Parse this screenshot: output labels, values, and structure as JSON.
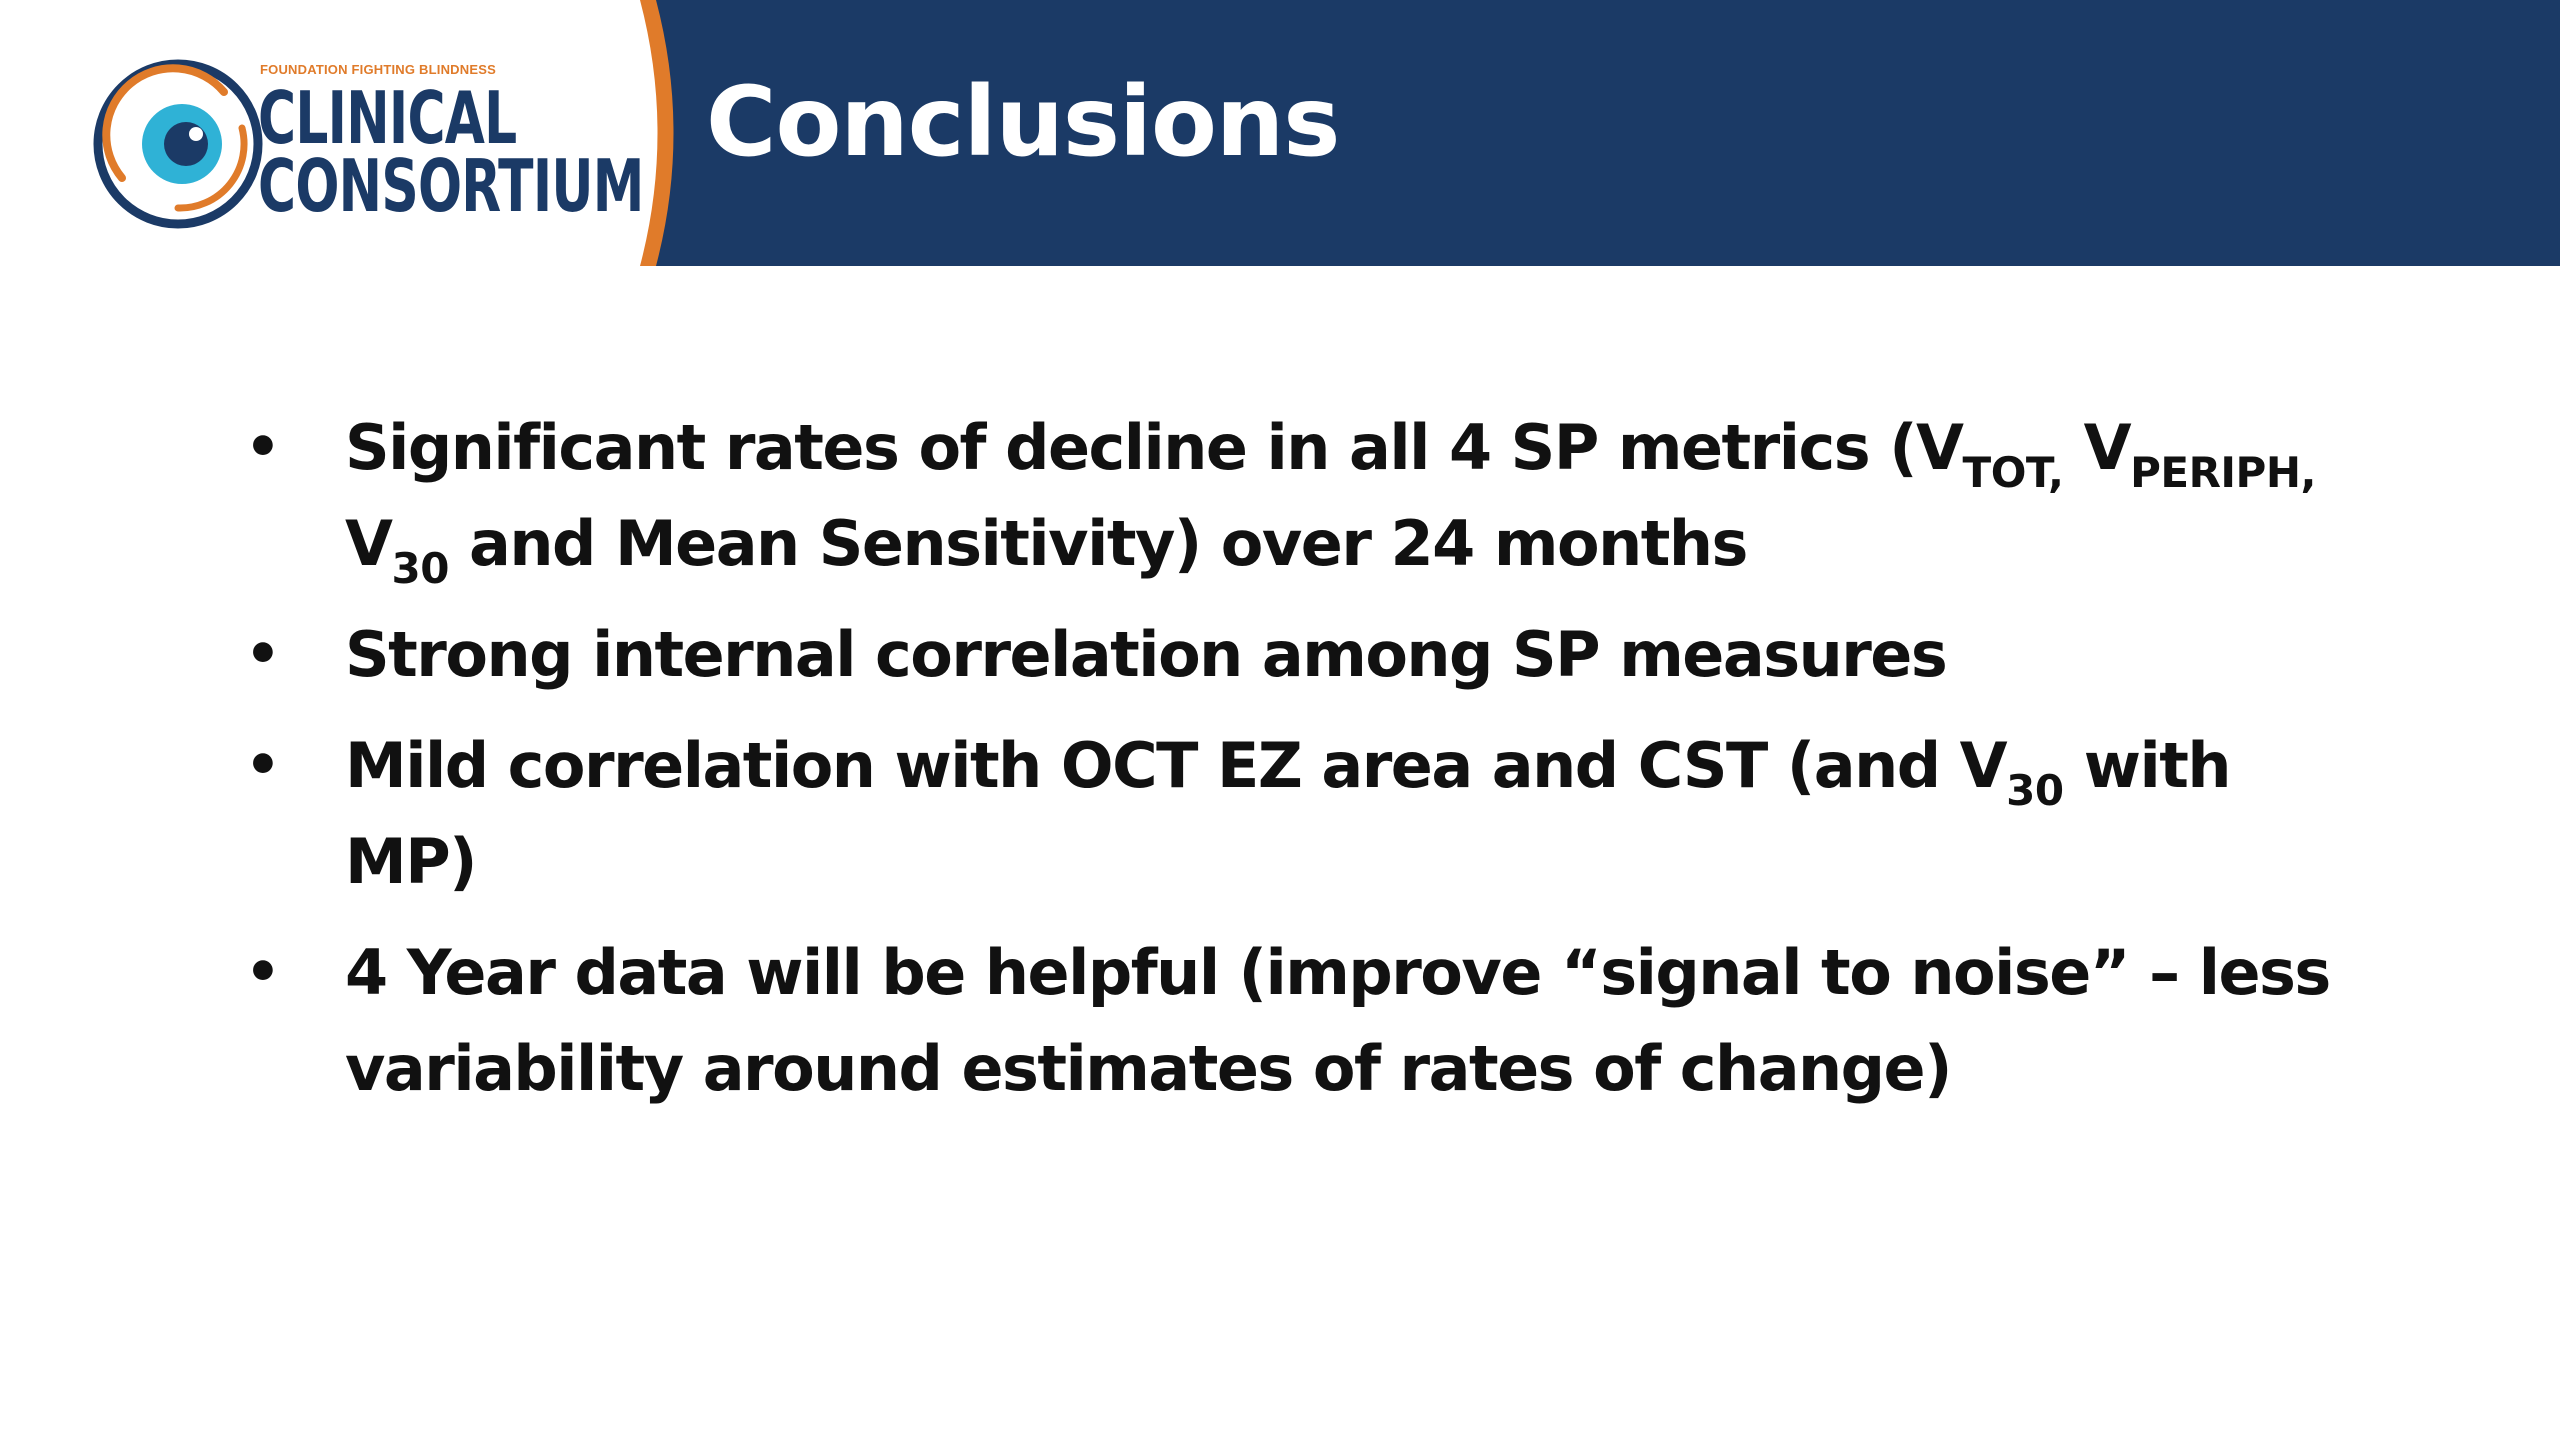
{
  "header": {
    "logo": {
      "tagline": "FOUNDATION FIGHTING BLINDNESS",
      "line1": "CLINICAL",
      "line2": "CONSORTIUM"
    },
    "title": "Conclusions"
  },
  "colors": {
    "banner": "#1b3a66",
    "accent_orange": "#e07b2a",
    "eye_blue": "#2fb2d6",
    "text": "#111111"
  },
  "bullets": [
    {
      "t1": "Significant rates of decline in all 4 SP metrics (V",
      "s1": "TOT,",
      "t2": " V",
      "s2": "PERIPH,",
      "t3": "V",
      "s3": "30",
      "t4": " and Mean Sensitivity) over 24 months"
    },
    {
      "text": "Strong internal correlation among SP measures"
    },
    {
      "t1": "Mild correlation with OCT EZ area and CST (and V",
      "s1": "30",
      "t2": " with MP)"
    },
    {
      "text": "4 Year data will be helpful (improve “signal to noise” – less variability around estimates of rates of change)"
    }
  ],
  "bullet_glyph": "•"
}
